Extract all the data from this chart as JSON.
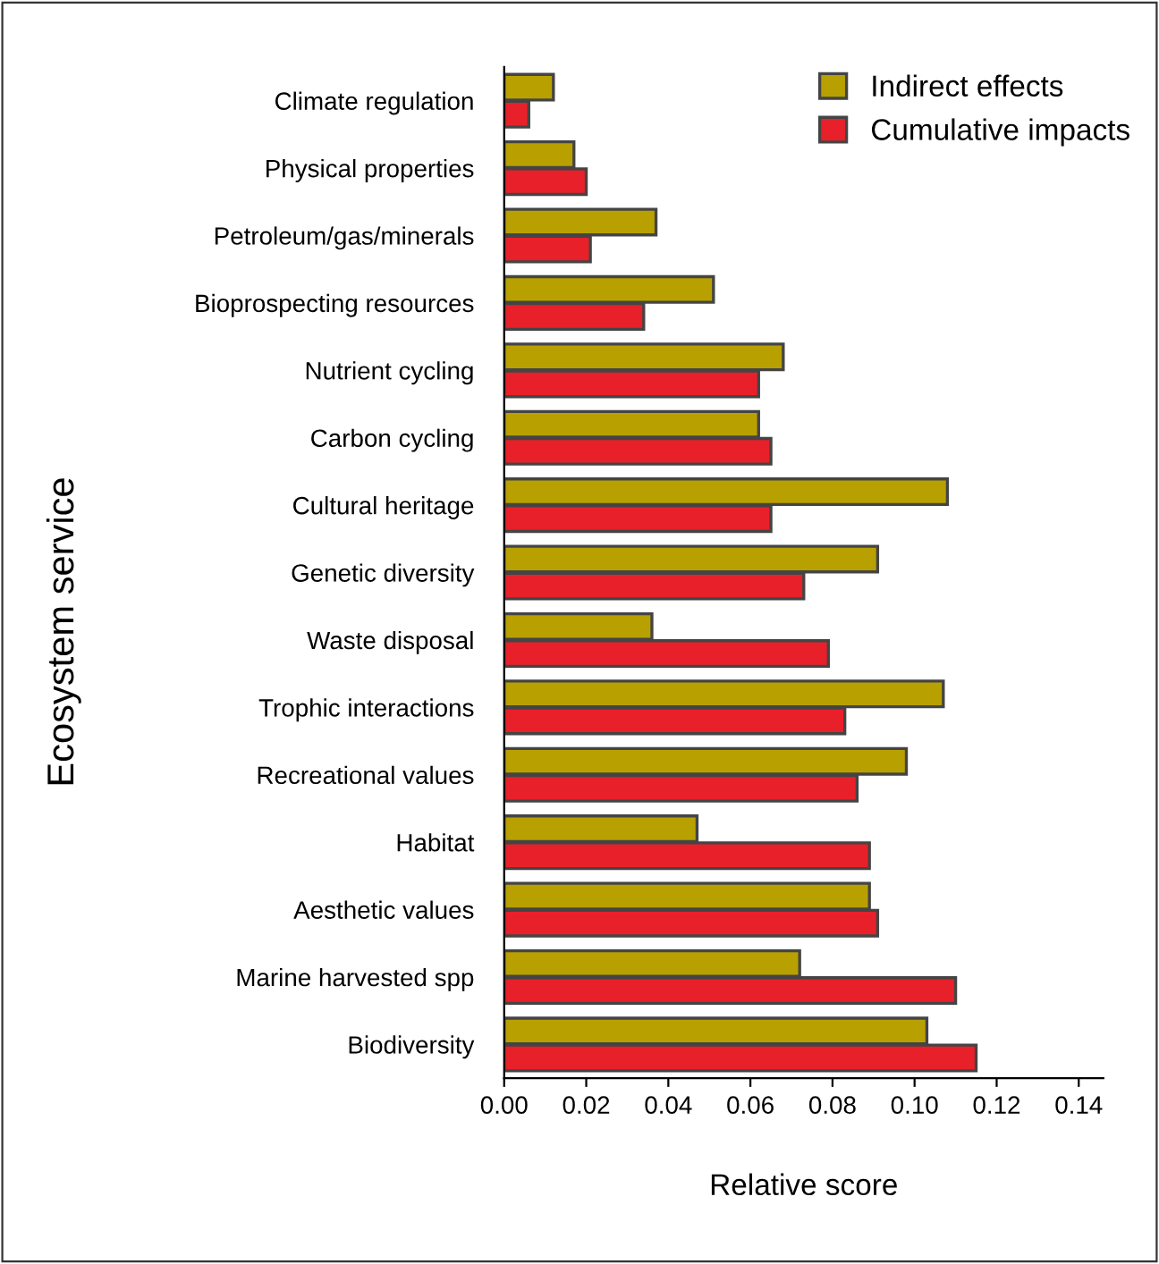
{
  "chart_data": {
    "type": "bar",
    "orientation": "horizontal",
    "xlabel": "Relative score",
    "ylabel": "Ecosystem service",
    "categories": [
      "Climate regulation",
      "Physical properties",
      "Petroleum/gas/minerals",
      "Bioprospecting resources",
      "Nutrient cycling",
      "Carbon cycling",
      "Cultural heritage",
      "Genetic diversity",
      "Waste disposal",
      "Trophic interactions",
      "Recreational values",
      "Habitat",
      "Aesthetic values",
      "Marine harvested spp",
      "Biodiversity"
    ],
    "series": [
      {
        "name": "Indirect effects",
        "color": "#b8a000",
        "values": [
          0.012,
          0.017,
          0.037,
          0.051,
          0.068,
          0.062,
          0.108,
          0.091,
          0.036,
          0.107,
          0.098,
          0.047,
          0.089,
          0.072,
          0.103
        ]
      },
      {
        "name": "Cumulative impacts",
        "color": "#e8202a",
        "values": [
          0.006,
          0.02,
          0.021,
          0.034,
          0.062,
          0.065,
          0.065,
          0.073,
          0.079,
          0.083,
          0.086,
          0.089,
          0.091,
          0.11,
          0.115
        ]
      }
    ],
    "xlim": [
      0,
      0.146
    ],
    "xticks": [
      {
        "value": 0,
        "label": "0.00"
      },
      {
        "value": 0.02,
        "label": "0.02"
      },
      {
        "value": 0.04,
        "label": "0.04"
      },
      {
        "value": 0.06,
        "label": "0.06"
      },
      {
        "value": 0.08,
        "label": "0.08"
      },
      {
        "value": 0.1,
        "label": "0.10"
      },
      {
        "value": 0.12,
        "label": "0.12"
      },
      {
        "value": 0.14,
        "label": "0.14"
      }
    ],
    "grid": false,
    "legend": "top right"
  }
}
